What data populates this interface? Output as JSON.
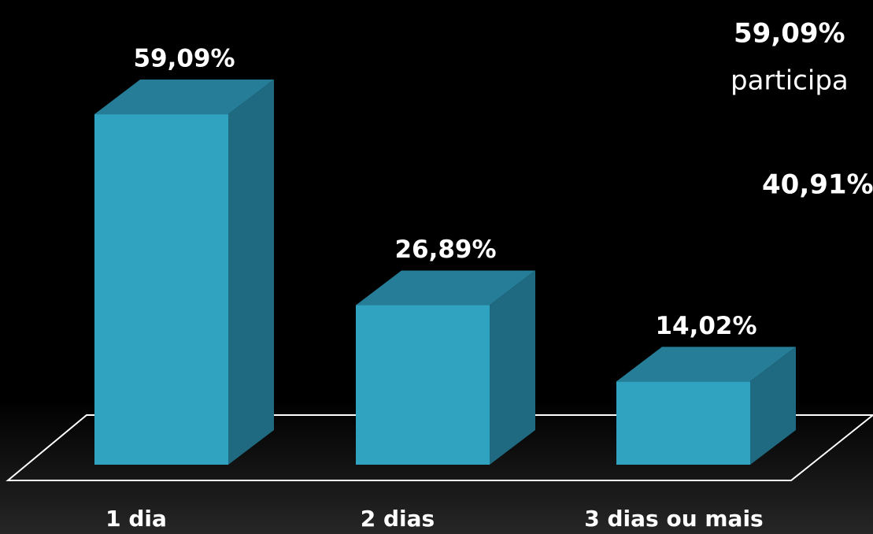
{
  "chart_data": {
    "type": "bar3d",
    "categories": [
      "1 dia",
      "2 dias",
      "3 dias ou mais"
    ],
    "values": [
      59.09,
      26.89,
      14.02
    ],
    "value_labels": [
      "59,09%",
      "26,89%",
      "14,02%"
    ],
    "color": "#2fa3c0",
    "annotations": [
      "59,09%",
      "participa",
      "40,91%"
    ]
  }
}
